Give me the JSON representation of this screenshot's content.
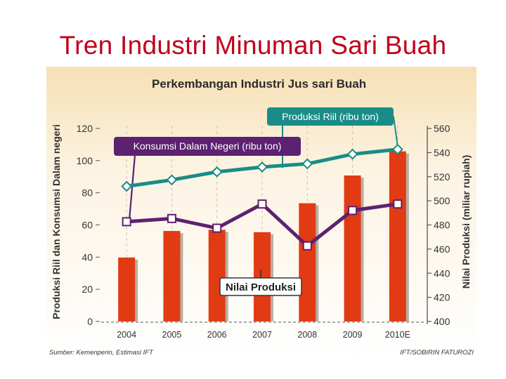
{
  "slide": {
    "title": "Tren Industri Minuman Sari Buah"
  },
  "chart_data": {
    "type": "bar",
    "title": "Perkembangan Industri Jus sari Buah",
    "categories": [
      "2004",
      "2005",
      "2006",
      "2007",
      "2008",
      "2009",
      "2010E"
    ],
    "left_axis": {
      "label": "Produksi Riil dan Konsumsi Dalam negeri",
      "ylim": [
        0,
        120
      ],
      "ticks": [
        "0",
        "20",
        "40",
        "60",
        "80",
        "100",
        "120"
      ]
    },
    "right_axis": {
      "label": "Nilai Produksi (miliar rupiah)",
      "ylim": [
        400,
        560
      ],
      "ticks": [
        "400",
        "420",
        "440",
        "460",
        "480",
        "500",
        "520",
        "540",
        "560"
      ]
    },
    "series": [
      {
        "name": "Nilai Produksi",
        "kind": "bar",
        "axis": "right",
        "values": [
          453,
          475,
          476,
          474,
          498,
          521,
          541
        ]
      },
      {
        "name": "Produksi Riil (ribu ton)",
        "kind": "line",
        "axis": "left",
        "values": [
          84,
          88,
          93,
          96,
          98,
          104,
          107
        ]
      },
      {
        "name": "Konsumsi Dalam Negeri (ribu ton)",
        "kind": "line",
        "axis": "left",
        "values": [
          62,
          64,
          58,
          73,
          47,
          69,
          73
        ]
      }
    ],
    "source": "Sumber: Kemenperin, Estimasi IFT",
    "credit": "IFT/SOBIRIN FATUROZI",
    "colors": {
      "bar": "#e23b14",
      "line_riil": "#1a8c87",
      "line_konsumsi": "#5c2170",
      "label_bg": "#5c2170",
      "title_band": "#f6e2b9",
      "plot_bg": "#fbf1dd"
    }
  }
}
